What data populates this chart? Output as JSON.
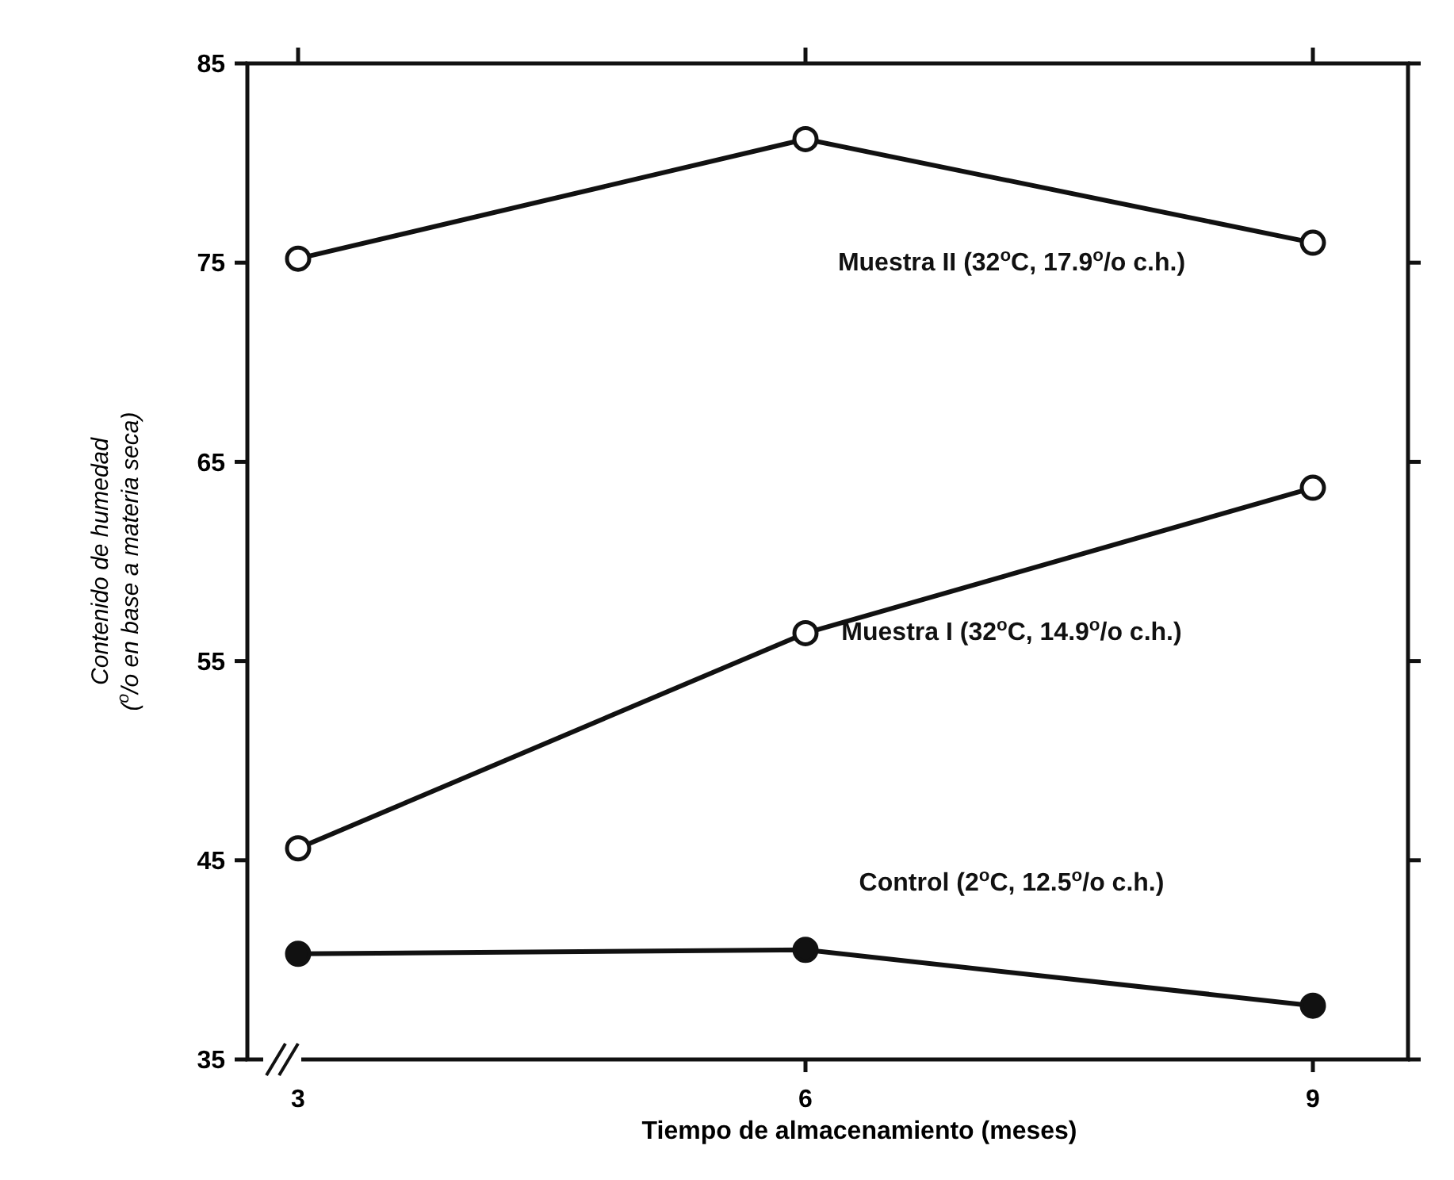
{
  "chart_data": {
    "type": "line",
    "xlabel": "Tiempo de almacenamiento  (meses)",
    "ylabel": "Contenido de humedad\n($^{o}$/o en base a materia seca)",
    "categories": [
      "3",
      "6",
      "9"
    ],
    "ylim": [
      35,
      85
    ],
    "yticks": [
      35,
      45,
      55,
      65,
      75,
      85
    ],
    "marker": "circle",
    "grid": false,
    "series": [
      {
        "name": "Muestra II (32$^{o}$C, 17.9$^{o}$/o c.h.)",
        "color": "#111111",
        "values": [
          75.2,
          81.2,
          76.0
        ]
      },
      {
        "name": "Muestra I (32$^{o}$C, 14.9$^{o}$/o c.h.)",
        "color": "#111111",
        "values": [
          45.6,
          56.4,
          63.7
        ]
      },
      {
        "name": "Control (2$^{o}$C, 12.5$^{o}$/o c.h.)",
        "color": "#111111",
        "values": [
          40.3,
          40.5,
          37.7
        ]
      }
    ]
  }
}
